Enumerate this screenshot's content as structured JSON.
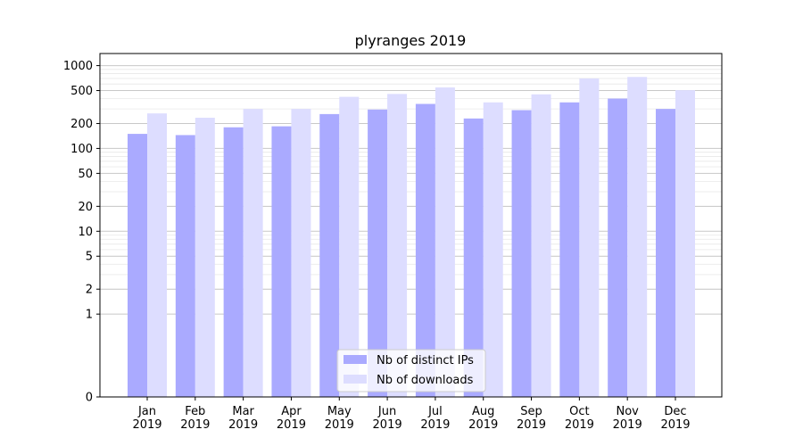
{
  "chart_data": {
    "type": "bar",
    "title": "plyranges 2019",
    "xlabel": "",
    "ylabel": "",
    "yscale": "symlog",
    "ylim": [
      0,
      1400
    ],
    "yticks": [
      0,
      1,
      2,
      5,
      10,
      20,
      50,
      100,
      200,
      500,
      1000
    ],
    "grid": true,
    "legend_position": "bottom-center",
    "categories": [
      "Jan\n2019",
      "Feb\n2019",
      "Mar\n2019",
      "Apr\n2019",
      "May\n2019",
      "Jun\n2019",
      "Jul\n2019",
      "Aug\n2019",
      "Sep\n2019",
      "Oct\n2019",
      "Nov\n2019",
      "Dec\n2019"
    ],
    "series": [
      {
        "name": "Nb of distinct IPs",
        "color": "#aaaaff",
        "values": [
          150,
          145,
          180,
          185,
          260,
          295,
          345,
          230,
          290,
          360,
          400,
          300
        ]
      },
      {
        "name": "Nb of downloads",
        "color": "#ddddff",
        "values": [
          265,
          235,
          300,
          300,
          420,
          455,
          545,
          360,
          450,
          700,
          730,
          505
        ]
      }
    ]
  }
}
